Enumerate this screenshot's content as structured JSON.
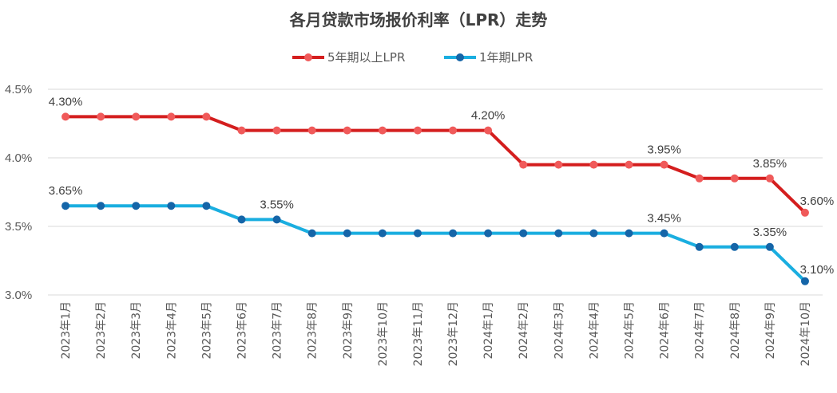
{
  "chart_data": {
    "type": "line",
    "title": "各月贷款市场报价利率（LPR）走势",
    "categories": [
      "2023年1月",
      "2023年2月",
      "2023年3月",
      "2023年4月",
      "2023年5月",
      "2023年6月",
      "2023年7月",
      "2023年8月",
      "2023年9月",
      "2023年10月",
      "2023年11月",
      "2023年12月",
      "2024年1月",
      "2024年2月",
      "2024年3月",
      "2024年4月",
      "2024年5月",
      "2024年6月",
      "2024年7月",
      "2024年8月",
      "2024年9月",
      "2024年10月"
    ],
    "series": [
      {
        "name": "5年期以上LPR",
        "color": "#d41e1e",
        "marker_color": "#f05a5a",
        "values": [
          4.3,
          4.3,
          4.3,
          4.3,
          4.3,
          4.2,
          4.2,
          4.2,
          4.2,
          4.2,
          4.2,
          4.2,
          4.2,
          3.95,
          3.95,
          3.95,
          3.95,
          3.95,
          3.85,
          3.85,
          3.85,
          3.6
        ],
        "data_labels": [
          {
            "index": 0,
            "text": "4.30%"
          },
          {
            "index": 12,
            "text": "4.20%"
          },
          {
            "index": 17,
            "text": "3.95%"
          },
          {
            "index": 20,
            "text": "3.85%"
          },
          {
            "index": 21,
            "text": "3.60%"
          }
        ]
      },
      {
        "name": "1年期LPR",
        "color": "#1aaee0",
        "marker_color": "#1565a8",
        "values": [
          3.65,
          3.65,
          3.65,
          3.65,
          3.65,
          3.55,
          3.55,
          3.45,
          3.45,
          3.45,
          3.45,
          3.45,
          3.45,
          3.45,
          3.45,
          3.45,
          3.45,
          3.45,
          3.35,
          3.35,
          3.35,
          3.1
        ],
        "data_labels": [
          {
            "index": 0,
            "text": "3.65%"
          },
          {
            "index": 6,
            "text": "3.55%"
          },
          {
            "index": 17,
            "text": "3.45%"
          },
          {
            "index": 20,
            "text": "3.35%"
          },
          {
            "index": 21,
            "text": "3.10%"
          }
        ]
      }
    ],
    "ylim": [
      3.0,
      4.5
    ],
    "yticks": [
      {
        "value": 4.5,
        "label": "4.5%"
      },
      {
        "value": 4.0,
        "label": "4.0%"
      },
      {
        "value": 3.5,
        "label": "3.5%"
      },
      {
        "value": 3.0,
        "label": "3.0%"
      }
    ],
    "grid": true,
    "legend_position": "top-center"
  }
}
